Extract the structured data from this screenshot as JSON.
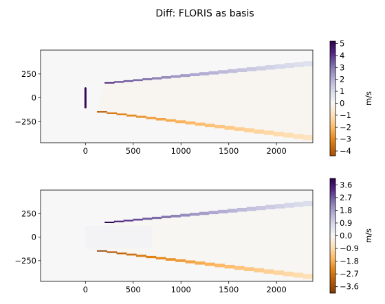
{
  "figure": {
    "title": "Diff: FLORIS as basis"
  },
  "palette": {
    "background": "#ffffff",
    "neutral": "#f7f6f6",
    "negative_max": "#b35806",
    "positive_max": "#2d004b"
  },
  "chart_data": [
    {
      "type": "heatmap",
      "title": "",
      "xlabel": "",
      "ylabel": "",
      "xlim": [
        -470,
        2380
      ],
      "ylim": [
        -470,
        500
      ],
      "xticks": [
        0,
        500,
        1000,
        1500,
        2000
      ],
      "yticks": [
        -250,
        0,
        250
      ],
      "xtick_labels": [
        "0",
        "500",
        "1000",
        "1500",
        "2000"
      ],
      "ytick_labels": [
        "−250",
        "0",
        "250"
      ],
      "colormap": "PuOr",
      "colorbar": {
        "label": "m/s",
        "vmin": -4.4,
        "vmax": 5.2,
        "ticks": [
          -4,
          -3,
          -2,
          -1,
          0,
          1,
          2,
          3,
          4,
          5
        ],
        "tick_labels": [
          "−4",
          "−3",
          "−2",
          "−1",
          "0",
          "1",
          "2",
          "3",
          "4",
          "5"
        ]
      },
      "features": {
        "rotor_line": {
          "x": 0,
          "y": [
            -100,
            100
          ],
          "value": 5.0
        },
        "upper_wake_edge": {
          "x_start": 200,
          "x_end": 2380,
          "y_start": 150,
          "y_end": 330,
          "value_start": 4.5,
          "value_end": 0.8
        },
        "lower_wake_edge": {
          "x_start": 120,
          "x_end": 2380,
          "y_start": -140,
          "y_end": -390,
          "value_start": -4.0,
          "value_end": -0.9
        },
        "wake_interior": {
          "value": -0.1
        }
      }
    },
    {
      "type": "heatmap",
      "title": "",
      "xlabel": "",
      "ylabel": "",
      "xlim": [
        -470,
        2380
      ],
      "ylim": [
        -470,
        500
      ],
      "xticks": [
        0,
        500,
        1000,
        1500,
        2000
      ],
      "yticks": [
        -250,
        0,
        250
      ],
      "xtick_labels": [
        "0",
        "500",
        "1000",
        "1500",
        "2000"
      ],
      "ytick_labels": [
        "−250",
        "0",
        "250"
      ],
      "colormap": "PuOr",
      "colorbar": {
        "label": "m/s",
        "vmin": -4.05,
        "vmax": 4.05,
        "ticks": [
          -3.6,
          -2.7,
          -1.8,
          -0.9,
          0.0,
          0.9,
          1.8,
          2.7,
          3.6
        ],
        "tick_labels": [
          "−3.6",
          "−2.7",
          "−1.8",
          "−0.9",
          "0.0",
          "0.9",
          "1.8",
          "2.7",
          "3.6"
        ]
      },
      "features": {
        "near_wake_patch": {
          "x": [
            0,
            700
          ],
          "y": [
            -120,
            120
          ],
          "value": 0.1
        },
        "upper_wake_edge": {
          "x_start": 200,
          "x_end": 2380,
          "y_start": 150,
          "y_end": 330,
          "value_start": 4.0,
          "value_end": 0.7
        },
        "lower_wake_edge": {
          "x_start": 120,
          "x_end": 2380,
          "y_start": -140,
          "y_end": -390,
          "value_start": -3.8,
          "value_end": -0.8
        },
        "wake_interior": {
          "value": -0.05
        }
      }
    }
  ]
}
